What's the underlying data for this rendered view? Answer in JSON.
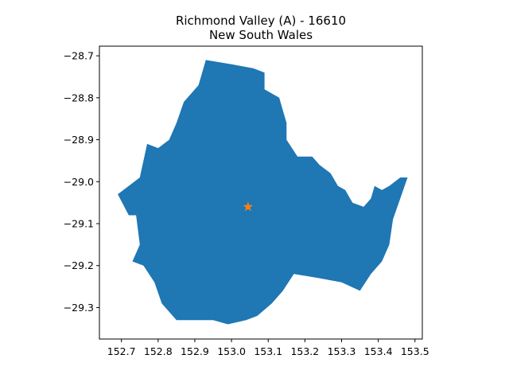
{
  "figure": {
    "title_line1": "Richmond Valley (A) - 16610",
    "title_line2": "New South Wales"
  },
  "colors": {
    "region_fill": "#1f77b4",
    "marker_fill": "#ff7f0e",
    "axes": "#000000",
    "background": "#ffffff"
  },
  "axes": {
    "x_ticks": [
      {
        "value": 152.7,
        "label": "152.7"
      },
      {
        "value": 152.8,
        "label": "152.8"
      },
      {
        "value": 152.9,
        "label": "152.9"
      },
      {
        "value": 153.0,
        "label": "153.0"
      },
      {
        "value": 153.1,
        "label": "153.1"
      },
      {
        "value": 153.2,
        "label": "153.2"
      },
      {
        "value": 153.3,
        "label": "153.3"
      },
      {
        "value": 153.4,
        "label": "153.4"
      },
      {
        "value": 153.5,
        "label": "153.5"
      }
    ],
    "y_ticks": [
      {
        "value": -28.7,
        "label": "−28.7"
      },
      {
        "value": -28.8,
        "label": "−28.8"
      },
      {
        "value": -28.9,
        "label": "−28.9"
      },
      {
        "value": -29.0,
        "label": "−29.0"
      },
      {
        "value": -29.1,
        "label": "−29.1"
      },
      {
        "value": -29.2,
        "label": "−29.2"
      },
      {
        "value": -29.3,
        "label": "−29.3"
      }
    ],
    "xlim": [
      152.64,
      153.52
    ],
    "ylim": [
      -29.375,
      -28.677
    ]
  },
  "region": {
    "outline_lonlat": [
      [
        152.93,
        -28.71
      ],
      [
        153.0,
        -28.72
      ],
      [
        153.06,
        -28.73
      ],
      [
        153.09,
        -28.74
      ],
      [
        153.09,
        -28.78
      ],
      [
        153.13,
        -28.8
      ],
      [
        153.14,
        -28.83
      ],
      [
        153.15,
        -28.86
      ],
      [
        153.15,
        -28.9
      ],
      [
        153.18,
        -28.94
      ],
      [
        153.22,
        -28.94
      ],
      [
        153.24,
        -28.96
      ],
      [
        153.27,
        -28.98
      ],
      [
        153.29,
        -29.01
      ],
      [
        153.31,
        -29.02
      ],
      [
        153.33,
        -29.05
      ],
      [
        153.36,
        -29.06
      ],
      [
        153.38,
        -29.04
      ],
      [
        153.39,
        -29.01
      ],
      [
        153.41,
        -29.02
      ],
      [
        153.43,
        -29.01
      ],
      [
        153.46,
        -28.99
      ],
      [
        153.48,
        -28.99
      ],
      [
        153.46,
        -29.04
      ],
      [
        153.44,
        -29.09
      ],
      [
        153.43,
        -29.15
      ],
      [
        153.41,
        -29.19
      ],
      [
        153.38,
        -29.22
      ],
      [
        153.35,
        -29.26
      ],
      [
        153.3,
        -29.24
      ],
      [
        153.24,
        -29.23
      ],
      [
        153.17,
        -29.22
      ],
      [
        153.14,
        -29.26
      ],
      [
        153.11,
        -29.29
      ],
      [
        153.07,
        -29.32
      ],
      [
        153.04,
        -29.33
      ],
      [
        152.99,
        -29.34
      ],
      [
        152.95,
        -29.33
      ],
      [
        152.9,
        -29.33
      ],
      [
        152.85,
        -29.33
      ],
      [
        152.81,
        -29.29
      ],
      [
        152.79,
        -29.24
      ],
      [
        152.76,
        -29.2
      ],
      [
        152.73,
        -29.19
      ],
      [
        152.75,
        -29.15
      ],
      [
        152.74,
        -29.08
      ],
      [
        152.72,
        -29.08
      ],
      [
        152.69,
        -29.03
      ],
      [
        152.72,
        -29.01
      ],
      [
        152.75,
        -28.99
      ],
      [
        152.76,
        -28.95
      ],
      [
        152.77,
        -28.91
      ],
      [
        152.8,
        -28.92
      ],
      [
        152.83,
        -28.9
      ],
      [
        152.85,
        -28.86
      ],
      [
        152.87,
        -28.81
      ],
      [
        152.91,
        -28.77
      ],
      [
        152.92,
        -28.74
      ]
    ],
    "centroid": {
      "lon": 153.045,
      "lat": -29.06
    }
  }
}
